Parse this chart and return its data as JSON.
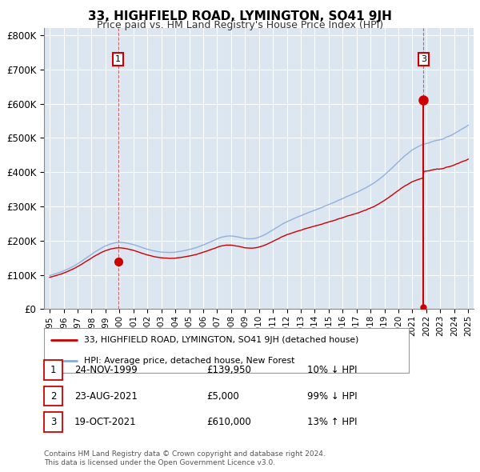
{
  "title": "33, HIGHFIELD ROAD, LYMINGTON, SO41 9JH",
  "subtitle": "Price paid vs. HM Land Registry's House Price Index (HPI)",
  "ylabel_ticks": [
    "£0",
    "£100K",
    "£200K",
    "£300K",
    "£400K",
    "£500K",
    "£600K",
    "£700K",
    "£800K"
  ],
  "ytick_values": [
    0,
    100000,
    200000,
    300000,
    400000,
    500000,
    600000,
    700000,
    800000
  ],
  "ylim": [
    0,
    820000
  ],
  "xlim_start": 1994.6,
  "xlim_end": 2025.4,
  "plot_bg_color": "#dce6f1",
  "grid_color": "#ffffff",
  "red_line_color": "#cc0000",
  "blue_line_color": "#88aadd",
  "transaction1_x": 1999.9,
  "transaction1_price": 139950,
  "transaction3_x": 2021.8,
  "transaction2_price": 5000,
  "transaction3_price": 610000,
  "legend_label_red": "33, HIGHFIELD ROAD, LYMINGTON, SO41 9JH (detached house)",
  "legend_label_blue": "HPI: Average price, detached house, New Forest",
  "table_rows": [
    [
      "1",
      "24-NOV-1999",
      "£139,950",
      "10% ↓ HPI"
    ],
    [
      "2",
      "23-AUG-2021",
      "£5,000",
      "99% ↓ HPI"
    ],
    [
      "3",
      "19-OCT-2021",
      "£610,000",
      "13% ↑ HPI"
    ]
  ],
  "footnote1": "Contains HM Land Registry data © Crown copyright and database right 2024.",
  "footnote2": "This data is licensed under the Open Government Licence v3.0.",
  "x_tick_years": [
    1995,
    1996,
    1997,
    1998,
    1999,
    2000,
    2001,
    2002,
    2003,
    2004,
    2005,
    2006,
    2007,
    2008,
    2009,
    2010,
    2011,
    2012,
    2013,
    2014,
    2015,
    2016,
    2017,
    2018,
    2019,
    2020,
    2021,
    2022,
    2023,
    2024,
    2025
  ]
}
